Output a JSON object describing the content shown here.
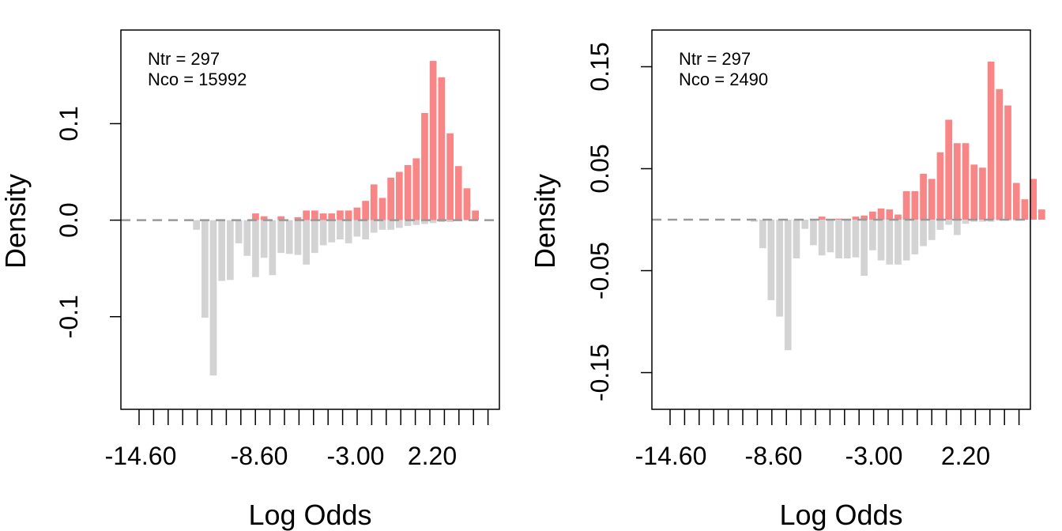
{
  "chart_data": [
    {
      "type": "bar",
      "annotations": [
        "Ntr =  297",
        "Nco =  15992"
      ],
      "xlabel": "Log Odds",
      "ylabel": "Density",
      "x_tick_labels": [
        "-14.60",
        "-8.60",
        "-3.00",
        "2.20"
      ],
      "y_ticks": [
        {
          "value": 0.1,
          "label": "0.1"
        },
        {
          "value": 0.0,
          "label": "0.0"
        },
        {
          "value": -0.1,
          "label": "-0.1"
        }
      ],
      "ylim": [
        -0.196,
        0.197
      ],
      "reference_line": 0,
      "colors": {
        "treated": "#f88686",
        "control": "#d3d3d3",
        "reference": "#999999"
      },
      "bin_width": 0.5,
      "treated": {
        "x": [
          -8.0,
          -7.5,
          -6.5,
          -5.5,
          -5.0,
          -4.5,
          -4.0,
          -3.5,
          -3.0,
          -2.5,
          -2.0,
          -1.5,
          -1.0,
          -0.5,
          0.0,
          0.5,
          1.0,
          1.5,
          2.0
        ],
        "values": [
          0.007,
          0.004,
          0.004,
          0.003,
          0.01,
          0.01,
          0.007,
          0.007,
          0.01,
          0.01,
          0.013,
          0.02,
          0.037,
          0.023,
          0.044,
          0.05,
          0.057,
          0.064,
          0.111
        ]
      },
      "treated_extra": {
        "x": [
          2.5,
          3.0,
          3.5,
          4.0,
          4.5,
          5.0
        ],
        "values": [
          0.165,
          0.148,
          0.09,
          0.056,
          0.033,
          0.01
        ]
      },
      "control": {
        "x": [
          -11.5,
          -11.0,
          -10.5,
          -10.0,
          -9.5,
          -9.0,
          -8.5,
          -8.0,
          -7.5,
          -7.0,
          -6.5,
          -6.0,
          -5.5,
          -5.0,
          -4.5,
          -4.0,
          -3.5,
          -3.0,
          -2.5,
          -2.0,
          -1.5,
          -1.0,
          -0.5,
          0.0,
          0.5,
          1.0,
          1.5,
          2.0,
          2.5,
          3.0,
          3.5,
          4.0
        ],
        "values": [
          -0.01,
          -0.101,
          -0.161,
          -0.063,
          -0.062,
          -0.024,
          -0.037,
          -0.059,
          -0.039,
          -0.057,
          -0.034,
          -0.035,
          -0.036,
          -0.046,
          -0.034,
          -0.026,
          -0.023,
          -0.02,
          -0.024,
          -0.017,
          -0.02,
          -0.013,
          -0.01,
          -0.01,
          -0.008,
          -0.006,
          -0.005,
          -0.004,
          -0.003,
          -0.002,
          -0.002,
          -0.001
        ]
      }
    },
    {
      "type": "bar",
      "annotations": [
        "Ntr =  297",
        "Nco =  2490"
      ],
      "xlabel": "Log Odds",
      "ylabel": "Density",
      "x_tick_labels": [
        "-14.60",
        "-8.60",
        "-3.00",
        "2.20"
      ],
      "y_ticks": [
        {
          "value": 0.15,
          "label": "0.15"
        },
        {
          "value": 0.05,
          "label": "0.05"
        },
        {
          "value": -0.05,
          "label": "-0.05"
        },
        {
          "value": -0.15,
          "label": "-0.15"
        }
      ],
      "ylim": [
        -0.186,
        0.186
      ],
      "reference_line": 0,
      "colors": {
        "treated": "#f88686",
        "control": "#d3d3d3",
        "reference": "#999999"
      },
      "bin_width": 0.5,
      "treated": {
        "x": [
          -7.5,
          -6.5,
          -5.5,
          -5.0,
          -4.5,
          -4.0,
          -3.5,
          -3.0,
          -2.5,
          -2.0,
          -1.5,
          -1.0,
          -0.5,
          0.0,
          0.5,
          1.0,
          1.5,
          2.0,
          2.5,
          3.0,
          3.5,
          4.0,
          4.5,
          5.0
        ],
        "values": [
          0.003,
          0.001,
          0.003,
          0.004,
          0.008,
          0.011,
          0.01,
          0.005,
          0.028,
          0.028,
          0.045,
          0.04,
          0.066,
          0.098,
          0.075,
          0.075,
          0.054,
          0.051,
          0.155,
          0.128,
          0.112,
          0.036,
          0.02,
          0.04
        ]
      },
      "treated_extra": {
        "x": [
          5.5
        ],
        "values": [
          0.01
        ]
      },
      "control": {
        "x": [
          -11.5,
          -11.0,
          -10.5,
          -10.0,
          -9.5,
          -9.0,
          -8.5,
          -8.0,
          -7.5,
          -7.0,
          -6.5,
          -6.0,
          -5.5,
          -5.0,
          -4.5,
          -4.0,
          -3.5,
          -3.0,
          -2.5,
          -2.0,
          -1.5,
          -1.0,
          -0.5,
          0.0,
          0.5,
          1.0,
          1.5,
          2.0,
          2.5,
          3.0,
          3.5,
          4.0
        ],
        "values": [
          -0.002,
          -0.028,
          -0.079,
          -0.095,
          -0.128,
          -0.038,
          -0.009,
          -0.025,
          -0.035,
          -0.032,
          -0.038,
          -0.038,
          -0.037,
          -0.055,
          -0.03,
          -0.04,
          -0.044,
          -0.044,
          -0.04,
          -0.034,
          -0.026,
          -0.02,
          -0.01,
          -0.005,
          -0.015,
          -0.004,
          -0.002,
          -0.002,
          -0.002,
          -0.001,
          -0.001,
          -0.001
        ]
      }
    }
  ]
}
